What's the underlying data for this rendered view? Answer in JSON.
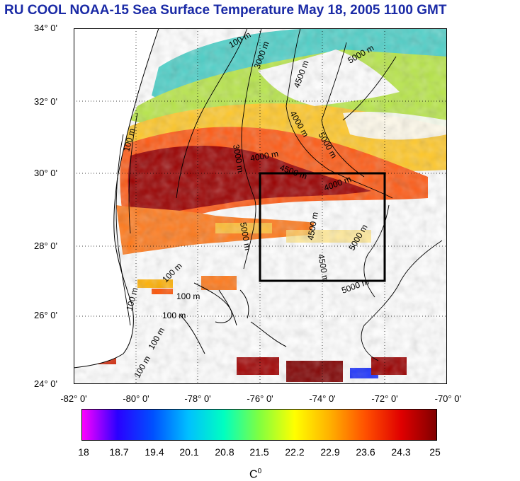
{
  "title": "RU COOL  NOAA-15 Sea Surface Temperature May 18, 2005 1100 GMT",
  "map": {
    "lat_labels": [
      "34° 0'",
      "32° 0'",
      "30° 0'",
      "28° 0'",
      "26° 0'",
      "24° 0'"
    ],
    "lon_labels": [
      "-82° 0'",
      "-80° 0'",
      "-78° 0'",
      "-76° 0'",
      "-74° 0'",
      "-72° 0'",
      "-70° 0'"
    ],
    "lat_range": [
      24,
      34
    ],
    "lon_range": [
      -82,
      -70
    ],
    "grid": "dotted",
    "contour_labels": [
      "100 m",
      "3000 m",
      "4500 m",
      "5000 m",
      "4000 m",
      "3000 m",
      "4000 m",
      "4500 m",
      "4000 m",
      "5000 m",
      "5000 m",
      "4500 m",
      "4500 m",
      "5000 m",
      "5000 m",
      "100 m",
      "100 m",
      "100 m",
      "100 m",
      "100 m",
      "100 m",
      "100 m"
    ],
    "focus_box": {
      "lat": [
        27,
        30
      ],
      "lon": [
        -76,
        -72
      ]
    }
  },
  "colorbar": {
    "min": 18,
    "max": 25,
    "tick_labels": [
      "18",
      "18.7",
      "19.4",
      "20.1",
      "20.8",
      "21.5",
      "22.2",
      "22.9",
      "23.6",
      "24.3",
      "25"
    ],
    "units_base": "C",
    "units_sup": "0",
    "colors": [
      "#ff00ff",
      "#2a00ff",
      "#0050ff",
      "#00c0ff",
      "#00ffc0",
      "#80ff40",
      "#ffff00",
      "#ffb000",
      "#ff5000",
      "#e00000",
      "#800000"
    ]
  }
}
